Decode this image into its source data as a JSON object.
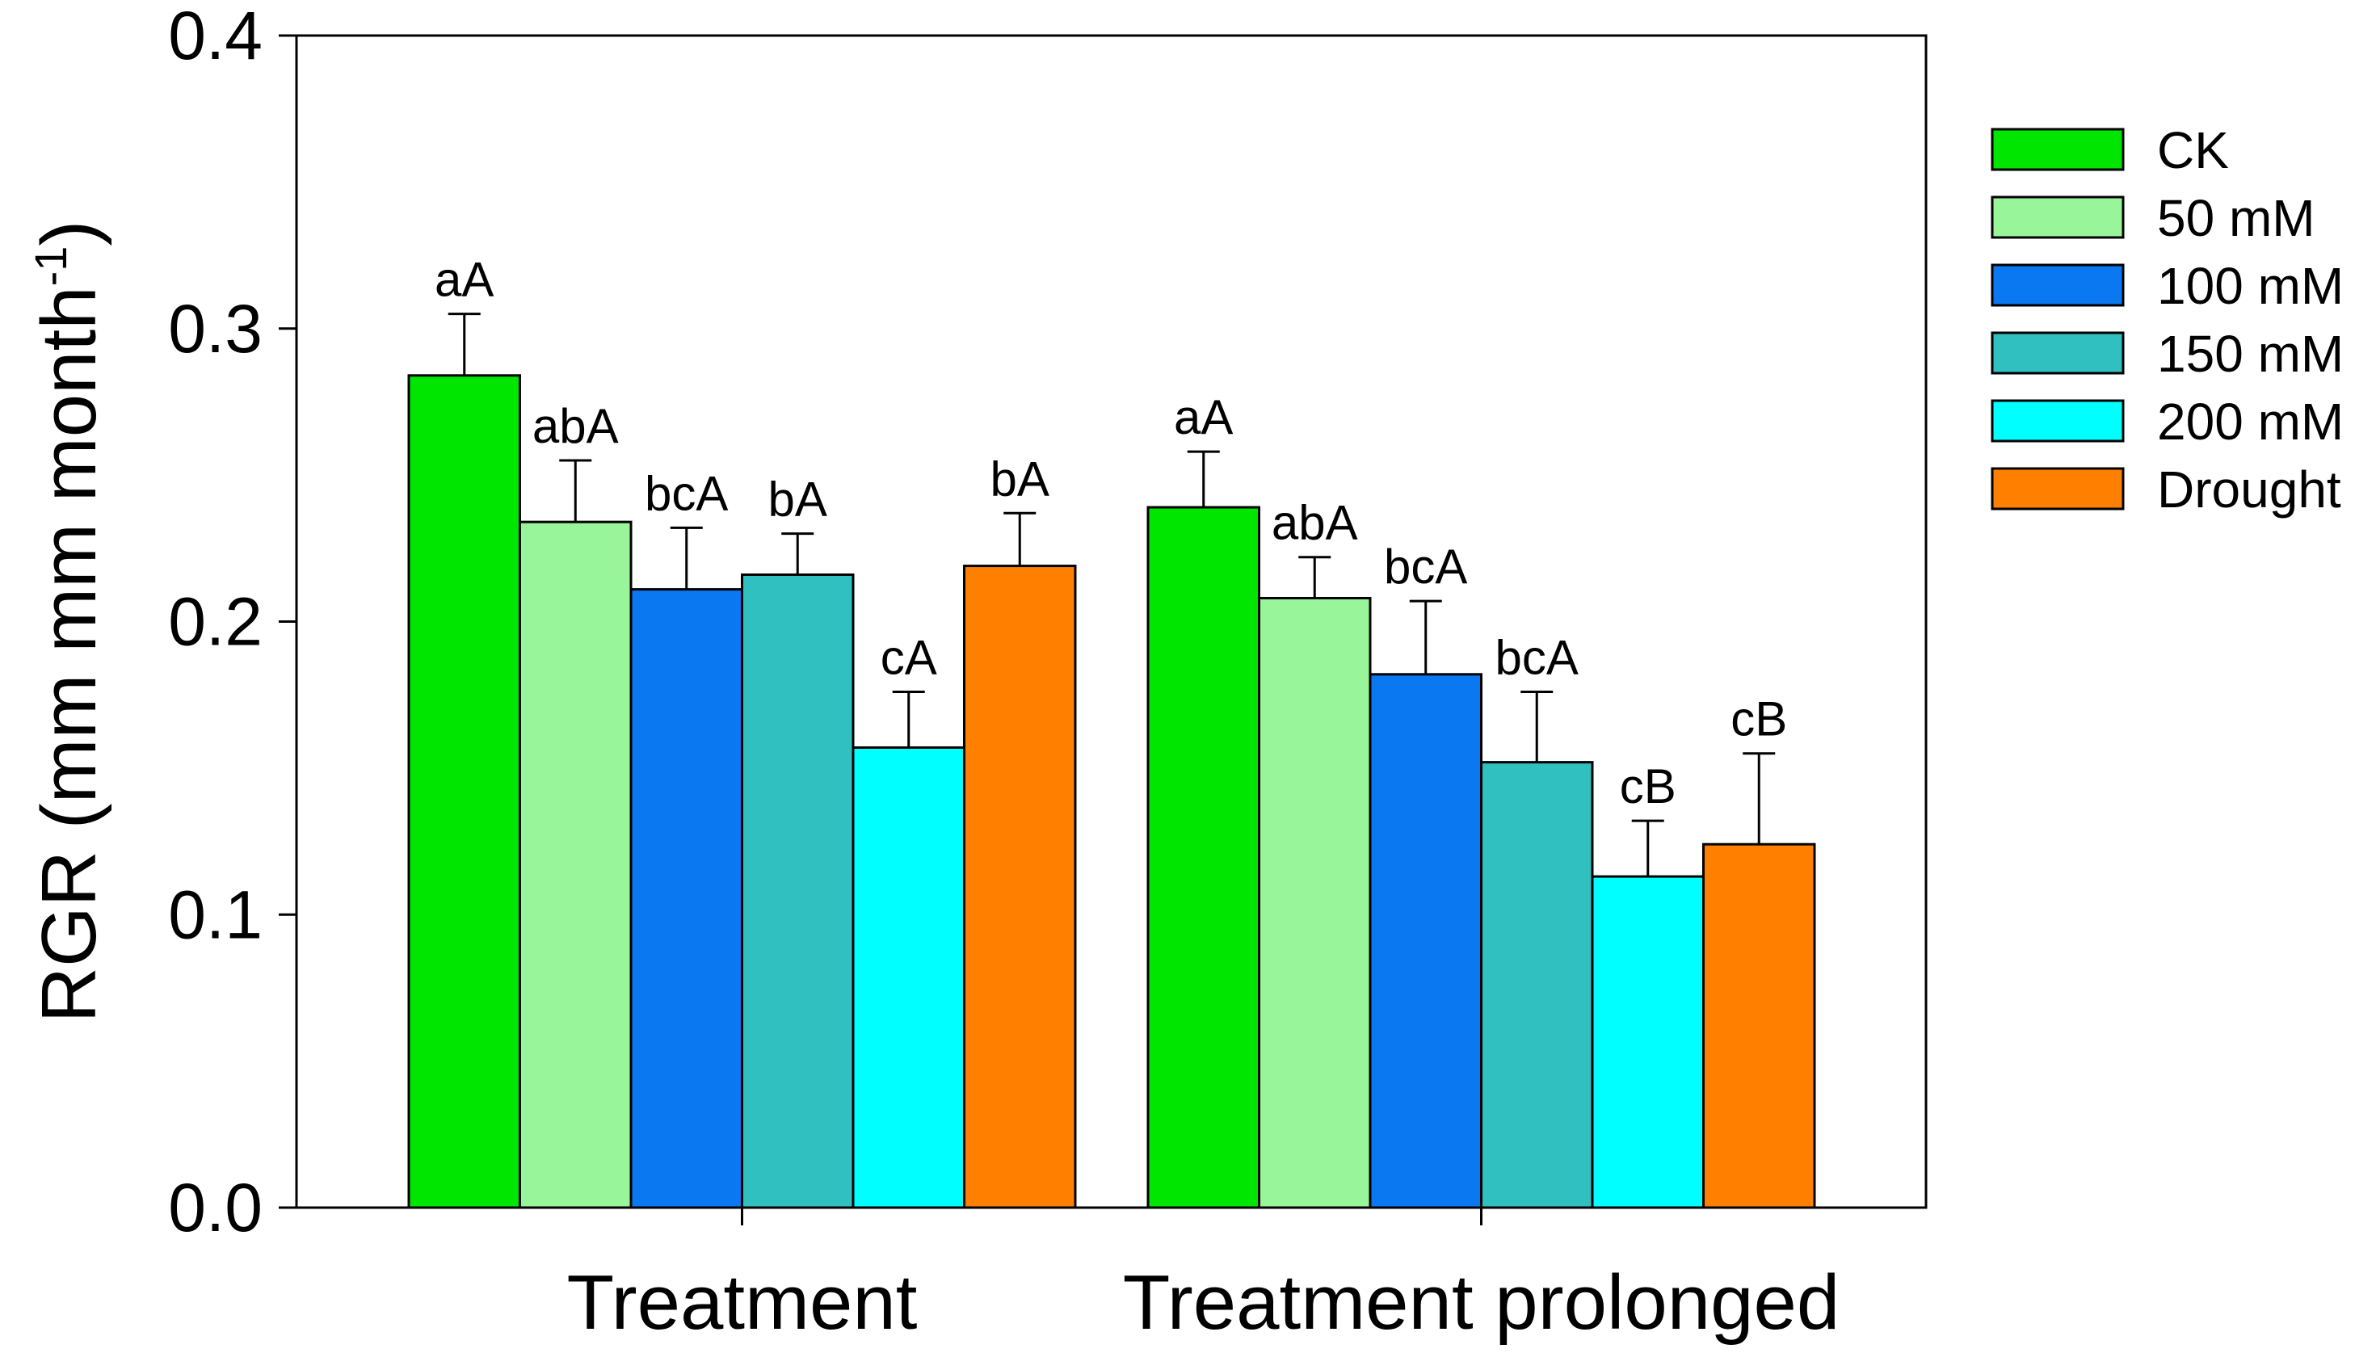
{
  "chart_data": {
    "type": "bar",
    "title": "",
    "xlabel": "",
    "ylabel": "RGR (mm mm month",
    "ylabel_superscript": "-1",
    "ylabel_suffix": ")",
    "ylim": [
      0,
      0.4
    ],
    "yticks": [
      0.0,
      0.1,
      0.2,
      0.3,
      0.4
    ],
    "ytick_labels": [
      "0.0",
      "0.1",
      "0.2",
      "0.3",
      "0.4"
    ],
    "categories": [
      "Treatment",
      "Treatment prolonged"
    ],
    "legend_position": "right",
    "series": [
      {
        "name": "CK",
        "color": "#00e600",
        "values": [
          0.284,
          0.239
        ],
        "errors": [
          0.021,
          0.019
        ],
        "labels": [
          "aA",
          "aA"
        ]
      },
      {
        "name": "50 mM",
        "color": "#99f599",
        "values": [
          0.234,
          0.208
        ],
        "errors": [
          0.021,
          0.014
        ],
        "labels": [
          "abA",
          "abA"
        ]
      },
      {
        "name": "100 mM",
        "color": "#0a78f0",
        "values": [
          0.211,
          0.182
        ],
        "errors": [
          0.021,
          0.025
        ],
        "labels": [
          "bcA",
          "bcA"
        ]
      },
      {
        "name": "150 mM",
        "color": "#30c0c0",
        "values": [
          0.216,
          0.152
        ],
        "errors": [
          0.014,
          0.024
        ],
        "labels": [
          "bA",
          "bcA"
        ]
      },
      {
        "name": "200 mM",
        "color": "#00ffff",
        "values": [
          0.157,
          0.113
        ],
        "errors": [
          0.019,
          0.019
        ],
        "labels": [
          "cA",
          "cB"
        ]
      },
      {
        "name": "Drought",
        "color": "#ff8000",
        "values": [
          0.219,
          0.124
        ],
        "errors": [
          0.018,
          0.031
        ],
        "labels": [
          "bA",
          "cB"
        ]
      }
    ]
  }
}
